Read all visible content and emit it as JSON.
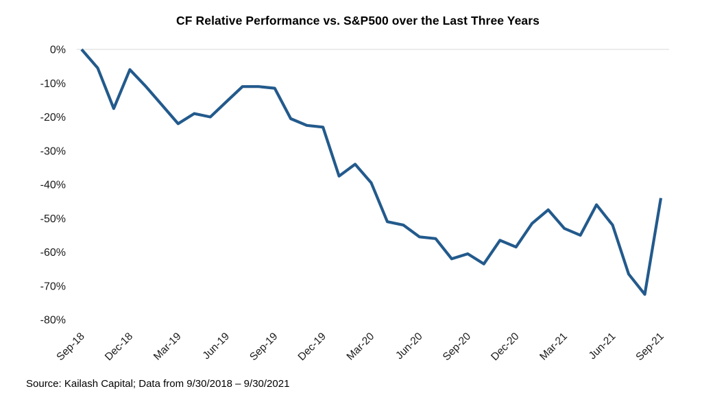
{
  "chart_data": {
    "type": "line",
    "title": "CF Relative Performance vs. S&P500 over the Last Three Years",
    "xlabel": "",
    "ylabel": "",
    "ylim": [
      -80,
      0
    ],
    "grid": "horizontal gridline at 0% only",
    "legend_position": "none",
    "line_color": "#235A8C",
    "gridline_color": "#D9D9D9",
    "x": [
      "Sep-18",
      "Oct-18",
      "Nov-18",
      "Dec-18",
      "Jan-19",
      "Feb-19",
      "Mar-19",
      "Apr-19",
      "May-19",
      "Jun-19",
      "Jul-19",
      "Aug-19",
      "Sep-19",
      "Oct-19",
      "Nov-19",
      "Dec-19",
      "Jan-20",
      "Feb-20",
      "Mar-20",
      "Apr-20",
      "May-20",
      "Jun-20",
      "Jul-20",
      "Aug-20",
      "Sep-20",
      "Oct-20",
      "Nov-20",
      "Dec-20",
      "Jan-21",
      "Feb-21",
      "Mar-21",
      "Apr-21",
      "May-21",
      "Jun-21",
      "Jul-21",
      "Aug-21",
      "Sep-21"
    ],
    "values": [
      0,
      -5.5,
      -17.5,
      -6,
      -11,
      -16.5,
      -22,
      -19,
      -20,
      -15.5,
      -11,
      -11,
      -11.5,
      -20.5,
      -22.5,
      -23,
      -37.5,
      -34,
      -39.5,
      -51,
      -52,
      -55.5,
      -56,
      -62,
      -60.5,
      -63.5,
      -56.5,
      -58.5,
      -51.5,
      -47.5,
      -53,
      -55,
      -46,
      -52,
      -66.5,
      -72.5,
      -44
    ],
    "series_name": "CF relative performance vs. S&P 500",
    "x_tick_labels": [
      "Sep-18",
      "Dec-18",
      "Mar-19",
      "Jun-19",
      "Sep-19",
      "Dec-19",
      "Mar-20",
      "Jun-20",
      "Sep-20",
      "Dec-20",
      "Mar-21",
      "Jun-21",
      "Sep-21"
    ],
    "y_tick_labels": [
      "0%",
      "-10%",
      "-20%",
      "-30%",
      "-40%",
      "-50%",
      "-60%",
      "-70%",
      "-80%"
    ]
  },
  "source_note": "Source: Kailash Capital; Data from 9/30/2018 – 9/30/2021"
}
